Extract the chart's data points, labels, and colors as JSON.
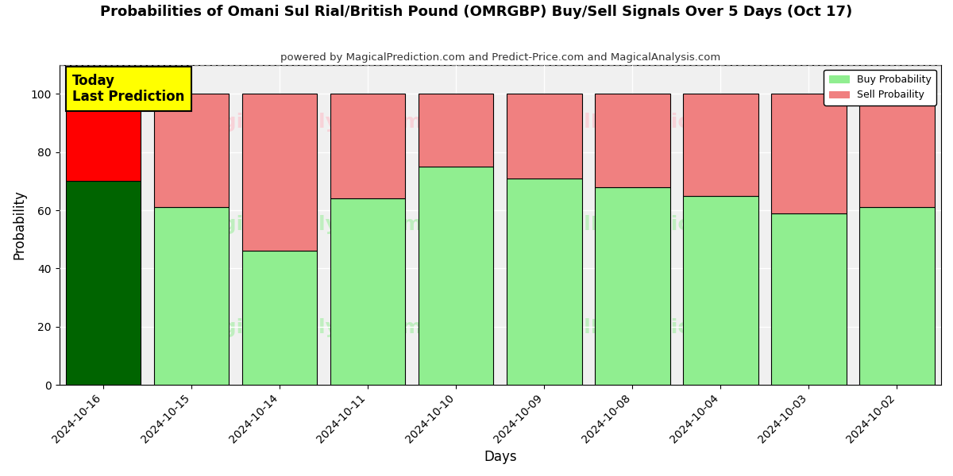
{
  "title": "Probabilities of Omani Sul Rial/British Pound (OMRGBP) Buy/Sell Signals Over 5 Days (Oct 17)",
  "subtitle": "powered by MagicalPrediction.com and Predict-Price.com and MagicalAnalysis.com",
  "xlabel": "Days",
  "ylabel": "Probability",
  "categories": [
    "2024-10-16",
    "2024-10-15",
    "2024-10-14",
    "2024-10-11",
    "2024-10-10",
    "2024-10-09",
    "2024-10-08",
    "2024-10-04",
    "2024-10-03",
    "2024-10-02"
  ],
  "buy_values": [
    70,
    61,
    46,
    64,
    75,
    71,
    68,
    65,
    59,
    61
  ],
  "sell_values": [
    30,
    39,
    54,
    36,
    25,
    29,
    32,
    35,
    41,
    39
  ],
  "today_idx": 0,
  "buy_color_today": "#006400",
  "sell_color_today": "#FF0000",
  "buy_color_normal": "#90EE90",
  "sell_color_normal": "#F08080",
  "ylim": [
    0,
    110
  ],
  "yticks": [
    0,
    20,
    40,
    60,
    80,
    100
  ],
  "dashed_line_y": 110,
  "background_color": "#ffffff",
  "plot_bg_color": "#f0f0f0",
  "grid_color": "#ffffff",
  "annotation_text": "Today\nLast Prediction",
  "annotation_color": "#FFFF00",
  "legend_buy_label": "Buy Probability",
  "legend_sell_label": "Sell Probaility",
  "bar_width": 0.85
}
